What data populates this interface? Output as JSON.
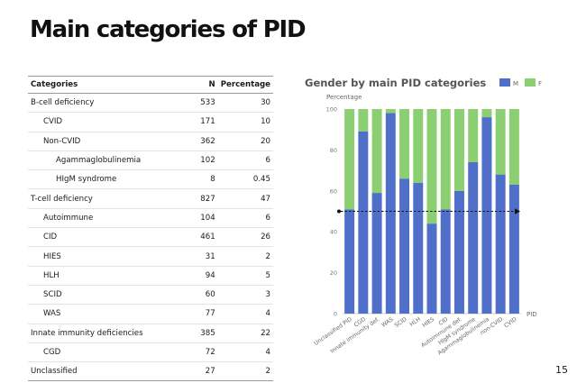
{
  "slide": {
    "title": "Main categories of PID",
    "page_number": "15"
  },
  "table": {
    "headers": {
      "category": "Categories",
      "n": "N",
      "percentage": "Percentage"
    },
    "rows": [
      {
        "label": "B-cell deficiency",
        "n": "533",
        "pct": "30",
        "level": 0
      },
      {
        "label": "CVID",
        "n": "171",
        "pct": "10",
        "level": 1
      },
      {
        "label": "Non-CVID",
        "n": "362",
        "pct": "20",
        "level": 1
      },
      {
        "label": "Agammaglobulinemia",
        "n": "102",
        "pct": "6",
        "level": 2
      },
      {
        "label": "HIgM syndrome",
        "n": "8",
        "pct": "0.45",
        "level": 2
      },
      {
        "label": "T-cell deficiency",
        "n": "827",
        "pct": "47",
        "level": 0
      },
      {
        "label": "Autoimmune",
        "n": "104",
        "pct": "6",
        "level": 1
      },
      {
        "label": "CID",
        "n": "461",
        "pct": "26",
        "level": 1
      },
      {
        "label": "HIES",
        "n": "31",
        "pct": "2",
        "level": 1
      },
      {
        "label": "HLH",
        "n": "94",
        "pct": "5",
        "level": 1
      },
      {
        "label": "SCID",
        "n": "60",
        "pct": "3",
        "level": 1
      },
      {
        "label": "WAS",
        "n": "77",
        "pct": "4",
        "level": 1
      },
      {
        "label": "Innate immunity deficiencies",
        "n": "385",
        "pct": "22",
        "level": 0
      },
      {
        "label": "CGD",
        "n": "72",
        "pct": "4",
        "level": 1
      },
      {
        "label": "Unclassified",
        "n": "27",
        "pct": "2",
        "level": 0
      }
    ]
  },
  "chart_data": {
    "type": "bar",
    "stacked": true,
    "title": "Gender by main PID categories",
    "ylabel": "Percentage",
    "xlabel": "PID",
    "ylim": [
      0,
      100
    ],
    "yticks": [
      0,
      20,
      40,
      60,
      80,
      100
    ],
    "categories": [
      "Unclassified PID",
      "CGD",
      "Innate immunity def.",
      "WAS",
      "SCID",
      "HLH",
      "HIES",
      "CID",
      "Autoimmune def.",
      "HIgM syndrome",
      "Agammaglobulinemia",
      "non-CVID",
      "CVID"
    ],
    "series": [
      {
        "name": "M",
        "color": "#4f6fc9",
        "values": [
          51,
          89,
          59,
          98,
          66,
          64,
          44,
          51,
          60,
          74,
          96,
          68,
          63
        ]
      },
      {
        "name": "F",
        "color": "#8ccf72",
        "values": [
          49,
          11,
          41,
          2,
          34,
          36,
          56,
          49,
          40,
          26,
          4,
          32,
          37
        ]
      }
    ],
    "reference_line": {
      "y": 50,
      "style": "dashed-arrow"
    },
    "legend": {
      "position": "top-right"
    },
    "grid": false
  }
}
